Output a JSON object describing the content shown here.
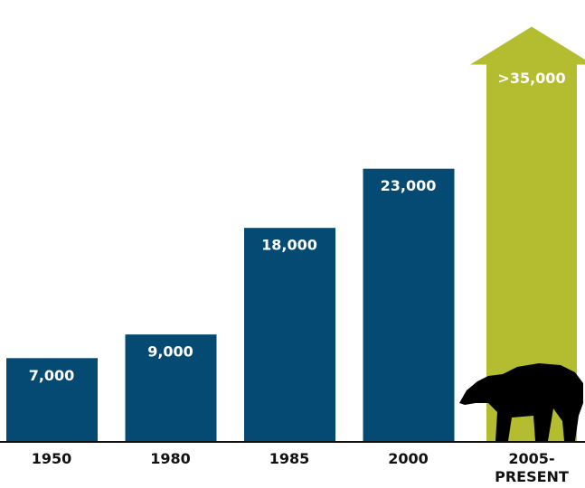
{
  "chart_data": {
    "type": "bar",
    "categories": [
      "1950",
      "1980",
      "1985",
      "2000",
      "2005-PRESENT"
    ],
    "values": [
      7000,
      9000,
      18000,
      23000,
      35000
    ],
    "value_labels": [
      "7,000",
      "9,000",
      "18,000",
      "23,000",
      ">35,000"
    ],
    "colors": [
      "#054a72",
      "#054a72",
      "#054a72",
      "#054a72",
      "#b4bc2f"
    ],
    "shapes": [
      "bar",
      "bar",
      "bar",
      "bar",
      "arrow"
    ]
  }
}
